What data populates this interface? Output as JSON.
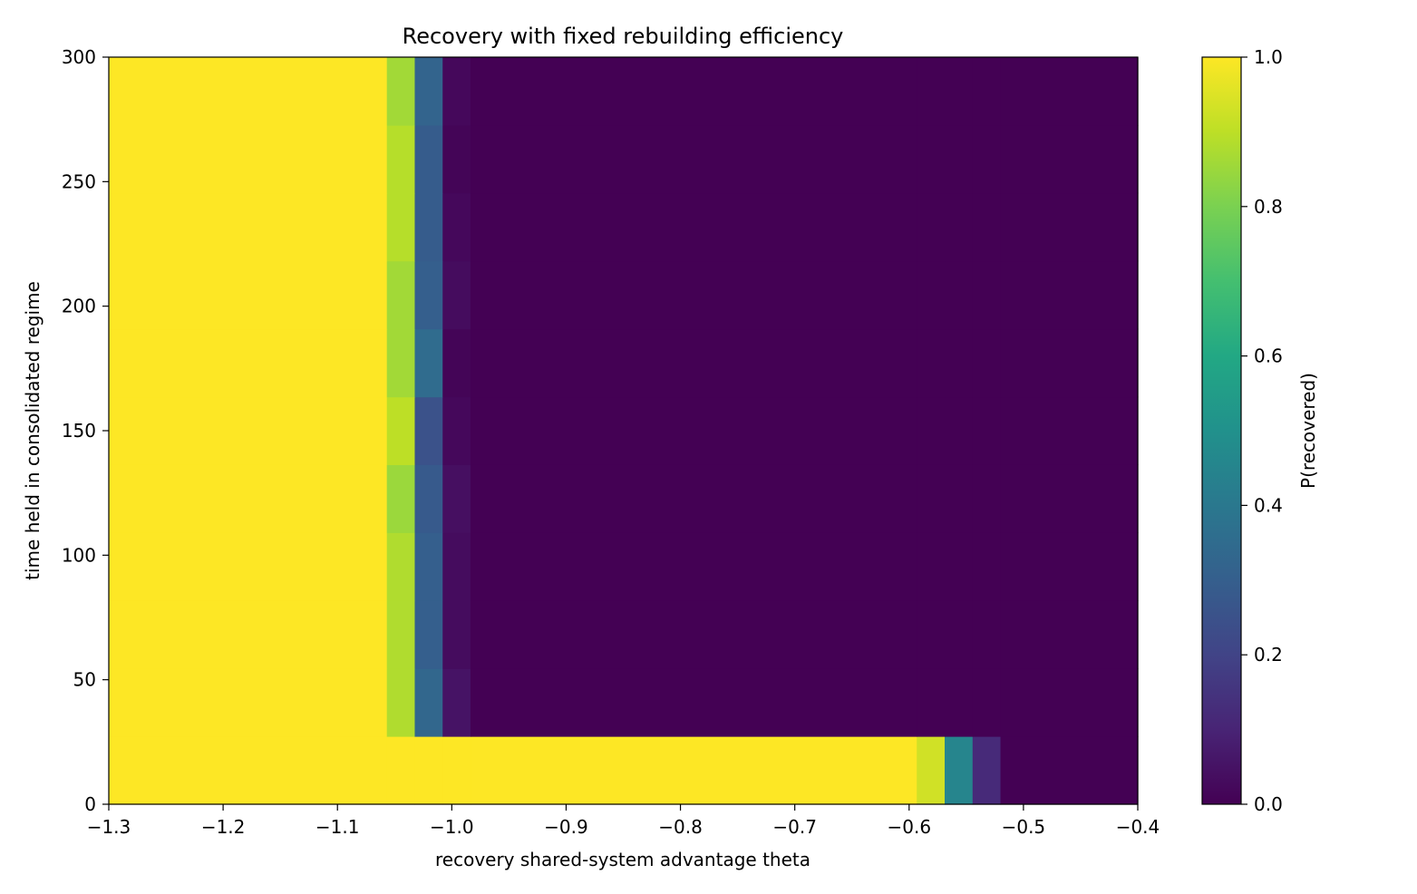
{
  "chart_data": {
    "type": "heatmap",
    "title": "Recovery with fixed rebuilding efficiency",
    "xlabel": "recovery shared-system advantage theta",
    "ylabel": "time held in consolidated regime",
    "xlim": [
      -1.3,
      -0.4
    ],
    "ylim": [
      0,
      300
    ],
    "xticks": [
      -1.3,
      -1.2,
      -1.1,
      -1.0,
      -0.9,
      -0.8,
      -0.7,
      -0.6,
      -0.5,
      -0.4
    ],
    "xtick_labels": [
      "−1.3",
      "−1.2",
      "−1.1",
      "−1.0",
      "−0.9",
      "−0.8",
      "−0.7",
      "−0.6",
      "−0.5",
      "−0.4"
    ],
    "yticks": [
      0,
      50,
      100,
      150,
      200,
      250,
      300
    ],
    "ytick_labels": [
      "0",
      "50",
      "100",
      "150",
      "200",
      "250",
      "300"
    ],
    "x_edges": [
      -1.3,
      -1.0568,
      -1.0324,
      -1.008,
      -0.9836,
      -0.5933,
      -0.5689,
      -0.5445,
      -0.5201,
      -0.4
    ],
    "y_edges": [
      0,
      27.3,
      54.5,
      81.8,
      109.1,
      136.4,
      163.6,
      190.9,
      218.2,
      245.5,
      272.7,
      300
    ],
    "z": [
      [
        1.0,
        1.0,
        1.0,
        1.0,
        1.0,
        0.93,
        0.45,
        0.12,
        0.0
      ],
      [
        1.0,
        0.88,
        0.33,
        0.05,
        0.0,
        0.0,
        0.0,
        0.0,
        0.0
      ],
      [
        1.0,
        0.88,
        0.3,
        0.03,
        0.0,
        0.0,
        0.0,
        0.0,
        0.0
      ],
      [
        1.0,
        0.88,
        0.3,
        0.03,
        0.0,
        0.0,
        0.0,
        0.0,
        0.0
      ],
      [
        1.0,
        0.85,
        0.28,
        0.04,
        0.0,
        0.0,
        0.0,
        0.0,
        0.0
      ],
      [
        1.0,
        0.9,
        0.25,
        0.02,
        0.0,
        0.0,
        0.0,
        0.0,
        0.0
      ],
      [
        1.0,
        0.86,
        0.35,
        0.01,
        0.0,
        0.0,
        0.0,
        0.0,
        0.0
      ],
      [
        1.0,
        0.86,
        0.3,
        0.03,
        0.0,
        0.0,
        0.0,
        0.0,
        0.0
      ],
      [
        1.0,
        0.89,
        0.29,
        0.02,
        0.0,
        0.0,
        0.0,
        0.0,
        0.0
      ],
      [
        1.0,
        0.89,
        0.29,
        0.01,
        0.0,
        0.0,
        0.0,
        0.0,
        0.0
      ],
      [
        1.0,
        0.86,
        0.32,
        0.02,
        0.0,
        0.0,
        0.0,
        0.0,
        0.0
      ]
    ],
    "colormap": "viridis",
    "colorbar": {
      "label": "P(recovered)",
      "range": [
        0,
        1
      ],
      "ticks": [
        0.0,
        0.2,
        0.4,
        0.6,
        0.8,
        1.0
      ],
      "tick_labels": [
        "0.0",
        "0.2",
        "0.4",
        "0.6",
        "0.8",
        "1.0"
      ]
    },
    "grid": false
  }
}
